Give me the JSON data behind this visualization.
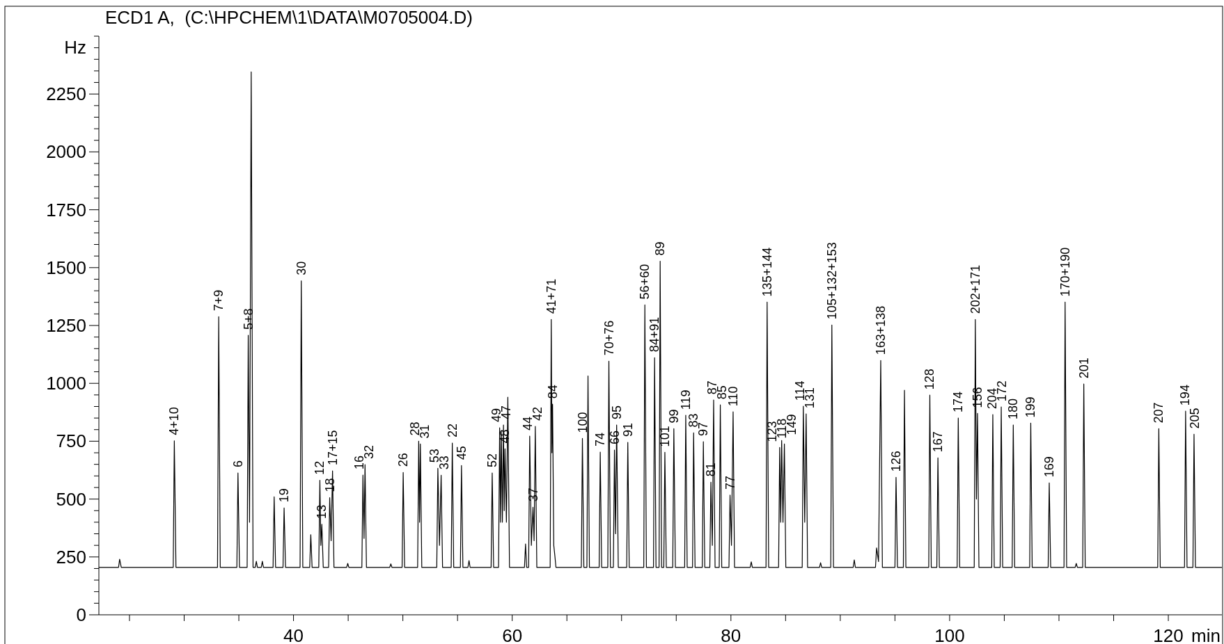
{
  "chart_data": {
    "type": "line",
    "title": "ECD1 A,  (C:\\HPCHEM\\1\\DATA\\M0705004.D)",
    "xlabel": "min",
    "ylabel": "Hz",
    "color": "#000000",
    "marker": "none",
    "grid": false,
    "legend": false,
    "xlim": [
      22.2,
      124.9
    ],
    "ylim": [
      0,
      2500
    ],
    "xticks": [
      {
        "value": 25,
        "label": null
      },
      {
        "value": 30,
        "label": null
      },
      {
        "value": 35,
        "label": null
      },
      40,
      {
        "value": 45,
        "label": null
      },
      {
        "value": 50,
        "label": null
      },
      {
        "value": 55,
        "label": null
      },
      60,
      {
        "value": 65,
        "label": null
      },
      {
        "value": 70,
        "label": null
      },
      {
        "value": 75,
        "label": null
      },
      80,
      {
        "value": 85,
        "label": null
      },
      {
        "value": 90,
        "label": null
      },
      {
        "value": 95,
        "label": null
      },
      100,
      {
        "value": 105,
        "label": null
      },
      {
        "value": 110,
        "label": null
      },
      {
        "value": 115,
        "label": null
      },
      120
    ],
    "yticks": [
      0,
      {
        "value": 50,
        "label": null
      },
      {
        "value": 100,
        "label": null
      },
      {
        "value": 150,
        "label": null
      },
      {
        "value": 200,
        "label": null
      },
      250,
      {
        "value": 300,
        "label": null
      },
      {
        "value": 350,
        "label": null
      },
      {
        "value": 400,
        "label": null
      },
      {
        "value": 450,
        "label": null
      },
      500,
      {
        "value": 550,
        "label": null
      },
      {
        "value": 600,
        "label": null
      },
      {
        "value": 650,
        "label": null
      },
      {
        "value": 700,
        "label": null
      },
      750,
      {
        "value": 800,
        "label": null
      },
      {
        "value": 850,
        "label": null
      },
      {
        "value": 900,
        "label": null
      },
      {
        "value": 950,
        "label": null
      },
      1000,
      {
        "value": 1050,
        "label": null
      },
      {
        "value": 1100,
        "label": null
      },
      {
        "value": 1150,
        "label": null
      },
      {
        "value": 1200,
        "label": null
      },
      1250,
      {
        "value": 1300,
        "label": null
      },
      {
        "value": 1350,
        "label": null
      },
      {
        "value": 1400,
        "label": null
      },
      {
        "value": 1450,
        "label": null
      },
      1500,
      {
        "value": 1550,
        "label": null
      },
      {
        "value": 1600,
        "label": null
      },
      {
        "value": 1650,
        "label": null
      },
      {
        "value": 1700,
        "label": null
      },
      1750,
      {
        "value": 1800,
        "label": null
      },
      {
        "value": 1850,
        "label": null
      },
      {
        "value": 1900,
        "label": null
      },
      {
        "value": 1950,
        "label": null
      },
      2000,
      {
        "value": 2050,
        "label": null
      },
      {
        "value": 2100,
        "label": null
      },
      {
        "value": 2150,
        "label": null
      },
      {
        "value": 2200,
        "label": null
      },
      2250,
      {
        "value": 2300,
        "label": null
      },
      {
        "value": 2350,
        "label": null
      },
      {
        "value": 2400,
        "label": null
      },
      {
        "value": 2450,
        "label": null
      },
      {
        "value": 2500,
        "label": null
      }
    ],
    "x": [
      22.2,
      24.0,
      24.1,
      24.25,
      29.0,
      29.1,
      29.25,
      33.05,
      33.16,
      33.3,
      34.82,
      34.92,
      35.06,
      35.76,
      35.86,
      35.98,
      36.13,
      36.3,
      36.5,
      36.6,
      36.7,
      37.05,
      37.15,
      37.25,
      38.13,
      38.23,
      38.36,
      39.04,
      39.14,
      39.27,
      40.6,
      40.71,
      40.85,
      41.48,
      41.58,
      41.7,
      42.31,
      42.41,
      42.5,
      42.59,
      42.72,
      43.21,
      43.31,
      43.44,
      43.57,
      43.7,
      44.86,
      44.96,
      45.06,
      46.25,
      46.35,
      46.45,
      46.54,
      46.67,
      48.8,
      48.9,
      49.0,
      49.93,
      50.03,
      50.16,
      51.35,
      51.45,
      51.53,
      51.6,
      51.73,
      53.1,
      53.2,
      53.35,
      53.5,
      53.63,
      54.42,
      54.52,
      54.65,
      55.26,
      55.36,
      55.49,
      55.95,
      56.05,
      56.15,
      58.07,
      58.17,
      58.3,
      58.75,
      58.85,
      58.93,
      59.0,
      59.1,
      59.2,
      59.27,
      59.34,
      59.47,
      59.6,
      59.75,
      61.12,
      61.22,
      61.32,
      61.5,
      61.6,
      61.75,
      61.9,
      62.0,
      62.11,
      62.25,
      63.47,
      63.57,
      63.63,
      63.69,
      63.8,
      63.9,
      64.0,
      66.32,
      66.42,
      66.55,
      66.83,
      66.93,
      67.06,
      67.95,
      68.05,
      68.18,
      68.74,
      68.84,
      68.98,
      69.25,
      69.35,
      69.45,
      69.55,
      69.7,
      70.47,
      70.57,
      70.7,
      72.03,
      72.13,
      72.27,
      72.92,
      73.02,
      73.15,
      73.43,
      73.53,
      73.66,
      73.86,
      73.96,
      74.09,
      74.68,
      74.78,
      74.92,
      75.77,
      75.87,
      76.0,
      76.49,
      76.59,
      76.72,
      77.38,
      77.48,
      77.61,
      78.07,
      78.17,
      78.3,
      78.42,
      78.55,
      78.93,
      79.03,
      79.16,
      79.82,
      79.92,
      80.05,
      80.2,
      80.33,
      81.76,
      81.86,
      81.96,
      83.21,
      83.31,
      83.45,
      84.36,
      84.46,
      84.55,
      84.64,
      84.76,
      84.89,
      85.02,
      86.52,
      86.62,
      86.75,
      86.88,
      87.01,
      88.1,
      88.2,
      88.3,
      89.13,
      89.23,
      89.38,
      91.18,
      91.28,
      91.38,
      93.22,
      93.32,
      93.5,
      93.7,
      93.85,
      95.0,
      95.1,
      95.23,
      95.77,
      95.87,
      96.0,
      98.09,
      98.19,
      98.32,
      98.83,
      98.93,
      99.06,
      100.69,
      100.79,
      100.92,
      102.25,
      102.35,
      102.45,
      102.55,
      102.68,
      103.85,
      103.95,
      104.08,
      104.62,
      104.72,
      104.85,
      105.72,
      105.82,
      105.95,
      107.32,
      107.42,
      107.55,
      109.01,
      109.11,
      109.24,
      110.46,
      110.56,
      110.7,
      111.48,
      111.58,
      111.68,
      112.17,
      112.27,
      112.4,
      119.03,
      119.13,
      119.26,
      121.48,
      121.58,
      121.71,
      122.25,
      122.35,
      122.48,
      124.9
    ],
    "values": [
      205,
      205,
      240,
      205,
      205,
      752,
      205,
      205,
      1288,
      205,
      205,
      613,
      205,
      205,
      1208,
      400,
      2346,
      205,
      205,
      231,
      205,
      205,
      231,
      205,
      205,
      510,
      205,
      205,
      462,
      205,
      205,
      1443,
      205,
      205,
      346,
      205,
      205,
      581,
      300,
      391,
      205,
      205,
      506,
      320,
      622,
      205,
      205,
      222,
      205,
      205,
      604,
      330,
      649,
      205,
      205,
      220,
      205,
      205,
      615,
      205,
      205,
      750,
      400,
      738,
      205,
      205,
      633,
      300,
      603,
      205,
      205,
      742,
      205,
      205,
      645,
      205,
      205,
      234,
      205,
      205,
      613,
      205,
      205,
      808,
      400,
      790,
      400,
      820,
      450,
      717,
      400,
      940,
      205,
      205,
      306,
      205,
      205,
      772,
      300,
      465,
      320,
      814,
      205,
      205,
      1276,
      700,
      910,
      300,
      255,
      205,
      205,
      762,
      205,
      205,
      1032,
      205,
      205,
      703,
      205,
      205,
      1096,
      205,
      205,
      712,
      350,
      820,
      205,
      205,
      745,
      205,
      205,
      1339,
      205,
      205,
      1111,
      205,
      205,
      1528,
      205,
      205,
      702,
      205,
      205,
      804,
      205,
      205,
      862,
      205,
      205,
      786,
      205,
      205,
      748,
      205,
      205,
      573,
      300,
      928,
      205,
      205,
      907,
      205,
      205,
      517,
      300,
      877,
      205,
      205,
      229,
      205,
      205,
      1351,
      205,
      205,
      723,
      400,
      753,
      400,
      738,
      205,
      205,
      901,
      400,
      868,
      205,
      205,
      225,
      205,
      205,
      1252,
      205,
      205,
      237,
      205,
      205,
      289,
      230,
      1099,
      205,
      205,
      594,
      205,
      205,
      970,
      205,
      205,
      949,
      205,
      205,
      678,
      205,
      205,
      850,
      205,
      205,
      1276,
      500,
      870,
      205,
      205,
      865,
      205,
      205,
      898,
      205,
      205,
      820,
      205,
      205,
      828,
      205,
      205,
      570,
      205,
      205,
      1351,
      205,
      205,
      222,
      205,
      205,
      997,
      205,
      205,
      804,
      205,
      205,
      880,
      205,
      205,
      780,
      205,
      205
    ],
    "annotations": [
      {
        "text": "4+10",
        "x": 29.1,
        "y": 752
      },
      {
        "text": "7+9",
        "x": 33.16,
        "y": 1288
      },
      {
        "text": "6",
        "x": 34.92,
        "y": 613
      },
      {
        "text": "5+8",
        "x": 35.86,
        "y": 1208
      },
      {
        "text": "19",
        "x": 39.14,
        "y": 462
      },
      {
        "text": "30",
        "x": 40.71,
        "y": 1443
      },
      {
        "text": "12",
        "x": 42.41,
        "y": 581
      },
      {
        "text": "13",
        "x": 42.59,
        "y": 391
      },
      {
        "text": "18",
        "x": 43.31,
        "y": 506
      },
      {
        "text": "17+15",
        "x": 43.57,
        "y": 622
      },
      {
        "text": "16",
        "x": 46.35,
        "y": 604
      },
      {
        "text": "32",
        "x": 46.54,
        "y": 649
      },
      {
        "text": "26",
        "x": 50.03,
        "y": 615
      },
      {
        "text": "28",
        "x": 51.45,
        "y": 750
      },
      {
        "text": "31",
        "x": 51.6,
        "y": 738
      },
      {
        "text": "53",
        "x": 53.2,
        "y": 633
      },
      {
        "text": "33",
        "x": 53.5,
        "y": 603
      },
      {
        "text": "22",
        "x": 54.52,
        "y": 742
      },
      {
        "text": "45",
        "x": 55.36,
        "y": 645
      },
      {
        "text": "52",
        "x": 58.17,
        "y": 613
      },
      {
        "text": "49",
        "x": 58.85,
        "y": 808
      },
      {
        "text": "47",
        "x": 59.2,
        "y": 820
      },
      {
        "text": "48",
        "x": 59.34,
        "y": 717
      },
      {
        "text": "44",
        "x": 61.6,
        "y": 772
      },
      {
        "text": "37",
        "x": 61.9,
        "y": 465
      },
      {
        "text": "42",
        "x": 62.11,
        "y": 814
      },
      {
        "text": "41+71",
        "x": 63.57,
        "y": 1276
      },
      {
        "text": "84",
        "x": 63.69,
        "y": 910
      },
      {
        "text": "100",
        "x": 66.42,
        "y": 762
      },
      {
        "text": "74",
        "x": 68.05,
        "y": 703
      },
      {
        "text": "70+76",
        "x": 68.84,
        "y": 1096
      },
      {
        "text": "66",
        "x": 69.35,
        "y": 712
      },
      {
        "text": "95",
        "x": 69.55,
        "y": 820
      },
      {
        "text": "91",
        "x": 70.57,
        "y": 745
      },
      {
        "text": "56+60",
        "x": 72.13,
        "y": 1339
      },
      {
        "text": "84+91",
        "x": 73.02,
        "y": 1111
      },
      {
        "text": "89",
        "x": 73.53,
        "y": 1528
      },
      {
        "text": "101",
        "x": 73.96,
        "y": 702
      },
      {
        "text": "99",
        "x": 74.78,
        "y": 804
      },
      {
        "text": "119",
        "x": 75.87,
        "y": 862
      },
      {
        "text": "83",
        "x": 76.59,
        "y": 786
      },
      {
        "text": "97",
        "x": 77.48,
        "y": 748
      },
      {
        "text": "81",
        "x": 78.17,
        "y": 573
      },
      {
        "text": "87",
        "x": 78.42,
        "y": 928
      },
      {
        "text": "85",
        "x": 79.03,
        "y": 907
      },
      {
        "text": "77",
        "x": 79.92,
        "y": 517
      },
      {
        "text": "110",
        "x": 80.2,
        "y": 877
      },
      {
        "text": "135+144",
        "x": 83.31,
        "y": 1351
      },
      {
        "text": "123",
        "x": 84.46,
        "y": 723
      },
      {
        "text": "149",
        "x": 84.64,
        "y": 753
      },
      {
        "text": "118",
        "x": 84.89,
        "y": 738
      },
      {
        "text": "114",
        "x": 86.62,
        "y": 901
      },
      {
        "text": "131",
        "x": 86.88,
        "y": 868
      },
      {
        "text": "105+132+153",
        "x": 89.23,
        "y": 1252
      },
      {
        "text": "163+138",
        "x": 93.7,
        "y": 1099
      },
      {
        "text": "126",
        "x": 95.1,
        "y": 594
      },
      {
        "text": "128",
        "x": 98.19,
        "y": 949
      },
      {
        "text": "167",
        "x": 98.93,
        "y": 678
      },
      {
        "text": "174",
        "x": 100.79,
        "y": 850
      },
      {
        "text": "202+171",
        "x": 102.35,
        "y": 1276
      },
      {
        "text": "156",
        "x": 102.55,
        "y": 870
      },
      {
        "text": "204",
        "x": 103.95,
        "y": 865
      },
      {
        "text": "172",
        "x": 104.72,
        "y": 898
      },
      {
        "text": "180",
        "x": 105.82,
        "y": 820
      },
      {
        "text": "199",
        "x": 107.42,
        "y": 828
      },
      {
        "text": "169",
        "x": 109.11,
        "y": 570
      },
      {
        "text": "170+190",
        "x": 110.56,
        "y": 1351
      },
      {
        "text": "201",
        "x": 112.27,
        "y": 997
      },
      {
        "text": "207",
        "x": 119.13,
        "y": 804
      },
      {
        "text": "194",
        "x": 121.58,
        "y": 880
      },
      {
        "text": "205",
        "x": 122.35,
        "y": 780
      }
    ]
  }
}
